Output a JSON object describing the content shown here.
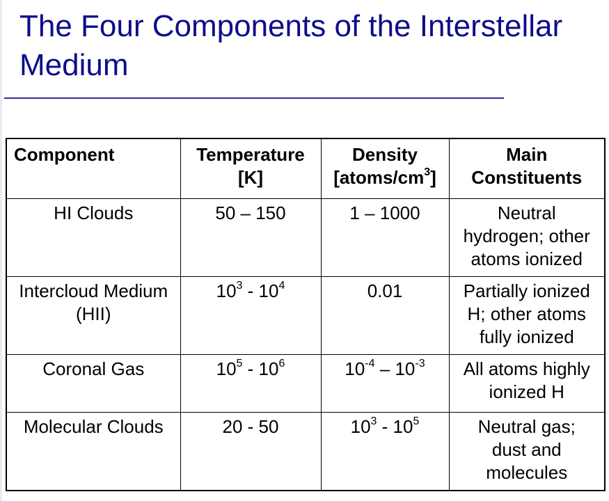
{
  "slide": {
    "title": "The Four Components of the Interstellar Medium"
  },
  "table": {
    "headers": {
      "component": "Component",
      "temperature": [
        "Temperature",
        "[K]"
      ],
      "density": {
        "line1": "Density",
        "line2_prefix": "[atoms/cm",
        "line2_sup": "3",
        "line2_suffix": "]"
      },
      "constituents": [
        "Main",
        "Constituents"
      ]
    },
    "rows": [
      {
        "component": [
          "HI Clouds"
        ],
        "temperature": {
          "text": "50 – 150"
        },
        "density": {
          "text": "1 – 1000"
        },
        "constituents": [
          "Neutral",
          "hydrogen; other",
          "atoms ionized"
        ]
      },
      {
        "component": [
          "Intercloud Medium",
          "(HII)"
        ],
        "temperature": {
          "a": "10",
          "a_exp": "3",
          "sep": " - ",
          "b": "10",
          "b_exp": "4"
        },
        "density": {
          "text": "0.01"
        },
        "constituents": [
          "Partially ionized",
          "H; other atoms",
          "fully ionized"
        ]
      },
      {
        "component": [
          "Coronal Gas"
        ],
        "temperature": {
          "a": "10",
          "a_exp": "5",
          "sep": " - ",
          "b": "10",
          "b_exp": "6"
        },
        "density": {
          "a": "10",
          "a_exp": "-4",
          "sep": " – ",
          "b": "10",
          "b_exp": "-3"
        },
        "constituents": [
          "All atoms highly",
          "ionized H"
        ]
      },
      {
        "component": [
          "Molecular Clouds"
        ],
        "temperature": {
          "text": "20 - 50"
        },
        "density": {
          "a": "10",
          "a_exp": "3",
          "sep": " - ",
          "b": "10",
          "b_exp": "5"
        },
        "constituents": [
          "Neutral gas;",
          "dust and",
          "molecules"
        ]
      }
    ]
  }
}
